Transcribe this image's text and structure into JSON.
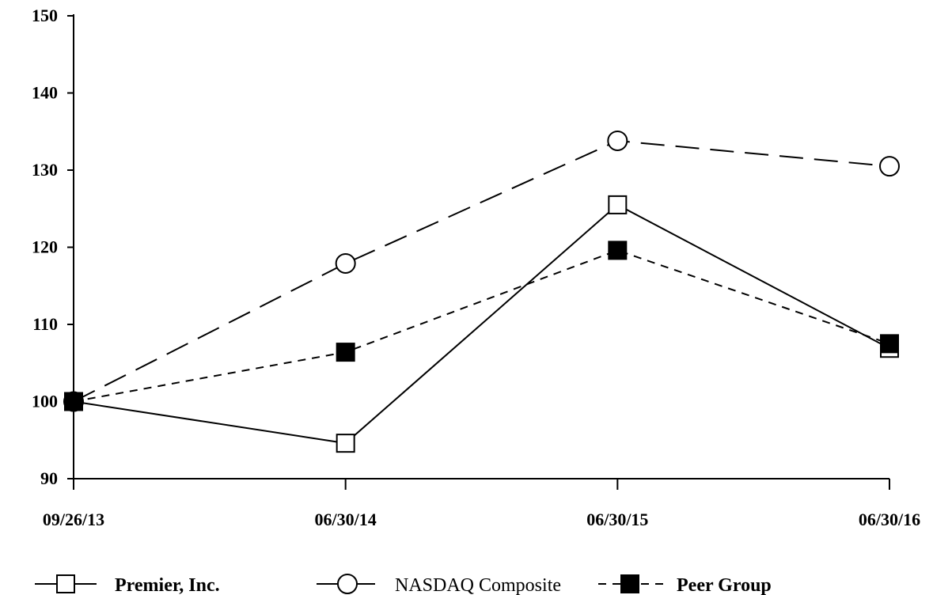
{
  "chart_data": {
    "type": "line",
    "title": "",
    "xlabel": "",
    "ylabel": "",
    "categories": [
      "09/26/13",
      "06/30/14",
      "06/30/15",
      "06/30/16"
    ],
    "ylim": [
      90,
      150
    ],
    "yticks": [
      90,
      100,
      110,
      120,
      130,
      140,
      150
    ],
    "ytick_labels": [
      "90",
      "100",
      "110",
      "120",
      "130",
      "140",
      "150"
    ],
    "grid": false,
    "legend_position": "bottom",
    "series": [
      {
        "name": "Premier, Inc.",
        "values": [
          100,
          94.6,
          125.5,
          106.9
        ],
        "line_style": "solid",
        "marker": "open-square",
        "label_weight": "bold",
        "color": "#000000"
      },
      {
        "name": "NASDAQ Composite",
        "values": [
          100,
          117.9,
          133.8,
          130.5
        ],
        "line_style": "long-dash",
        "marker": "open-circle",
        "label_weight": "normal",
        "color": "#000000"
      },
      {
        "name": "Peer Group",
        "values": [
          100,
          106.4,
          119.6,
          107.5
        ],
        "line_style": "short-dash",
        "marker": "filled-square",
        "label_weight": "bold",
        "color": "#000000"
      }
    ]
  }
}
